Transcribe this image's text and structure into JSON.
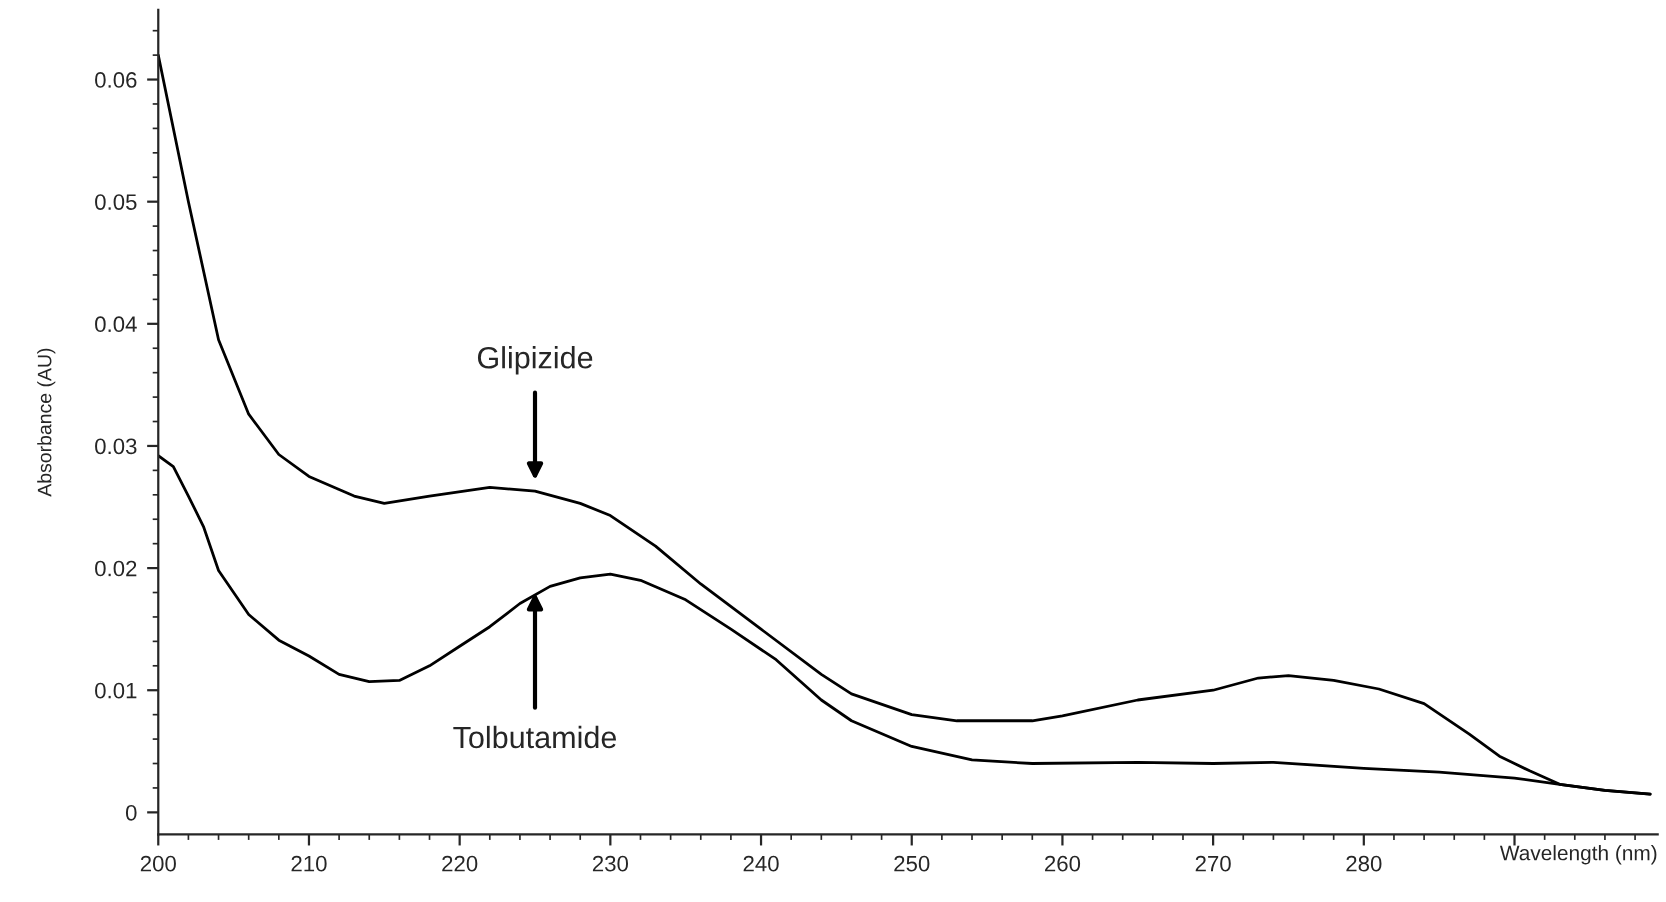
{
  "chart_data": {
    "type": "line",
    "xlabel": "Wavelength (nm)",
    "ylabel": "Absorbance (AU)",
    "xlim": [
      200,
      299.5
    ],
    "ylim": [
      -0.0018,
      0.0657
    ],
    "xticks": [
      200,
      210,
      220,
      230,
      240,
      250,
      260,
      270,
      280,
      {
        "value": 290,
        "label": null
      }
    ],
    "yticks": [
      {
        "value": 0,
        "label": "0"
      },
      0.01,
      0.02,
      0.03,
      0.04,
      0.05,
      0.06
    ],
    "grid": false,
    "legend": false,
    "marker": "none",
    "line_style": "solid",
    "series": [
      {
        "color": "#000000",
        "x": [
          200,
          202,
          204,
          206,
          208,
          210,
          213,
          215,
          218,
          222,
          225,
          228,
          230,
          233,
          236,
          240,
          244,
          246,
          250,
          253,
          258,
          260,
          265,
          270,
          273,
          275,
          278,
          281,
          284,
          287,
          289,
          291,
          293,
          296,
          299
        ],
        "values": [
          0.062,
          0.05,
          0.0387,
          0.0326,
          0.0293,
          0.0275,
          0.0259,
          0.0253,
          0.0259,
          0.0266,
          0.0263,
          0.0253,
          0.0243,
          0.0218,
          0.0187,
          0.015,
          0.0113,
          0.0097,
          0.008,
          0.0075,
          0.0075,
          0.0079,
          0.0092,
          0.01,
          0.011,
          0.0112,
          0.0108,
          0.0101,
          0.0089,
          0.0064,
          0.0046,
          0.0034,
          0.0023,
          0.0018,
          0.0015
        ]
      },
      {
        "color": "#000000",
        "x": [
          200,
          201,
          202,
          203,
          204,
          206,
          208,
          210,
          212,
          214,
          216,
          218,
          220,
          222,
          224,
          226,
          228,
          230,
          232,
          235,
          238,
          241,
          244,
          246,
          250,
          254,
          258,
          265,
          270,
          274,
          280,
          285,
          290,
          293,
          296,
          299
        ],
        "values": [
          0.0292,
          0.0283,
          0.0259,
          0.0234,
          0.0198,
          0.0162,
          0.0141,
          0.0128,
          0.0113,
          0.0107,
          0.0108,
          0.012,
          0.0136,
          0.0152,
          0.0171,
          0.0185,
          0.0192,
          0.0195,
          0.019,
          0.0174,
          0.015,
          0.0125,
          0.0092,
          0.0075,
          0.0054,
          0.0043,
          0.004,
          0.0041,
          0.004,
          0.0041,
          0.0036,
          0.0033,
          0.0028,
          0.0023,
          0.0018,
          0.0015
        ]
      }
    ],
    "annotations": [
      {
        "text": "Glipizide",
        "x": 225,
        "y": 0.0272
      },
      {
        "text": "Tolbutamide",
        "x": 225,
        "y": 0.018
      }
    ]
  }
}
